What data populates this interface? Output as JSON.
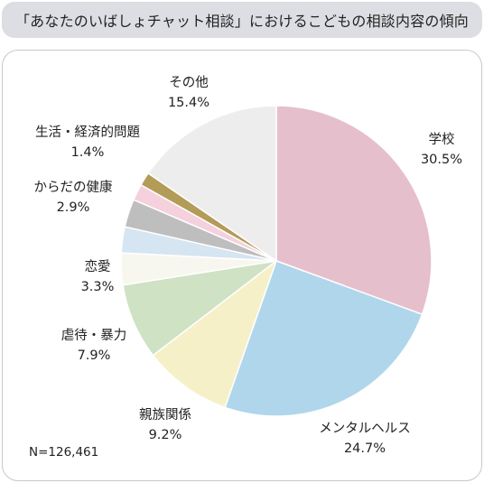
{
  "title": "「あなたのいばしょチャット相談」におけるこどもの相談内容の傾向",
  "sample_size": "N=126,461",
  "chart_data": {
    "type": "pie",
    "title": "「あなたのいばしょチャット相談」におけるこどもの相談内容の傾向",
    "start": "12 o'clock",
    "direction": "clockwise",
    "slices": [
      {
        "label": "学校",
        "value": 30.5,
        "value_label": "30.5%",
        "color": "#e6bfcc"
      },
      {
        "label": "メンタルヘルス",
        "value": 24.7,
        "value_label": "24.7%",
        "color": "#b0d6ec"
      },
      {
        "label": "親族関係",
        "value": 9.2,
        "value_label": "9.2%",
        "color": "#f5f0c8"
      },
      {
        "label": "虐待・暴力",
        "value": 7.9,
        "value_label": "7.9%",
        "color": "#cfe2c4"
      },
      {
        "label": "恋愛",
        "value": 3.3,
        "value_label": "3.3%",
        "color": "#f7f7ef"
      },
      {
        "label": "",
        "value": 2.7,
        "value_label": "",
        "color": "#d5e5f1"
      },
      {
        "label": "からだの健康",
        "value": 2.9,
        "value_label": "2.9%",
        "color": "#bebebe"
      },
      {
        "label": "",
        "value": 1.7,
        "value_label": "",
        "color": "#f4d1dc"
      },
      {
        "label": "生活・経済的問題",
        "value": 1.4,
        "value_label": "1.4%",
        "color": "#b39b58"
      },
      {
        "label": "その他",
        "value": 15.4,
        "value_label": "15.4%",
        "color": "#ededed"
      }
    ]
  }
}
